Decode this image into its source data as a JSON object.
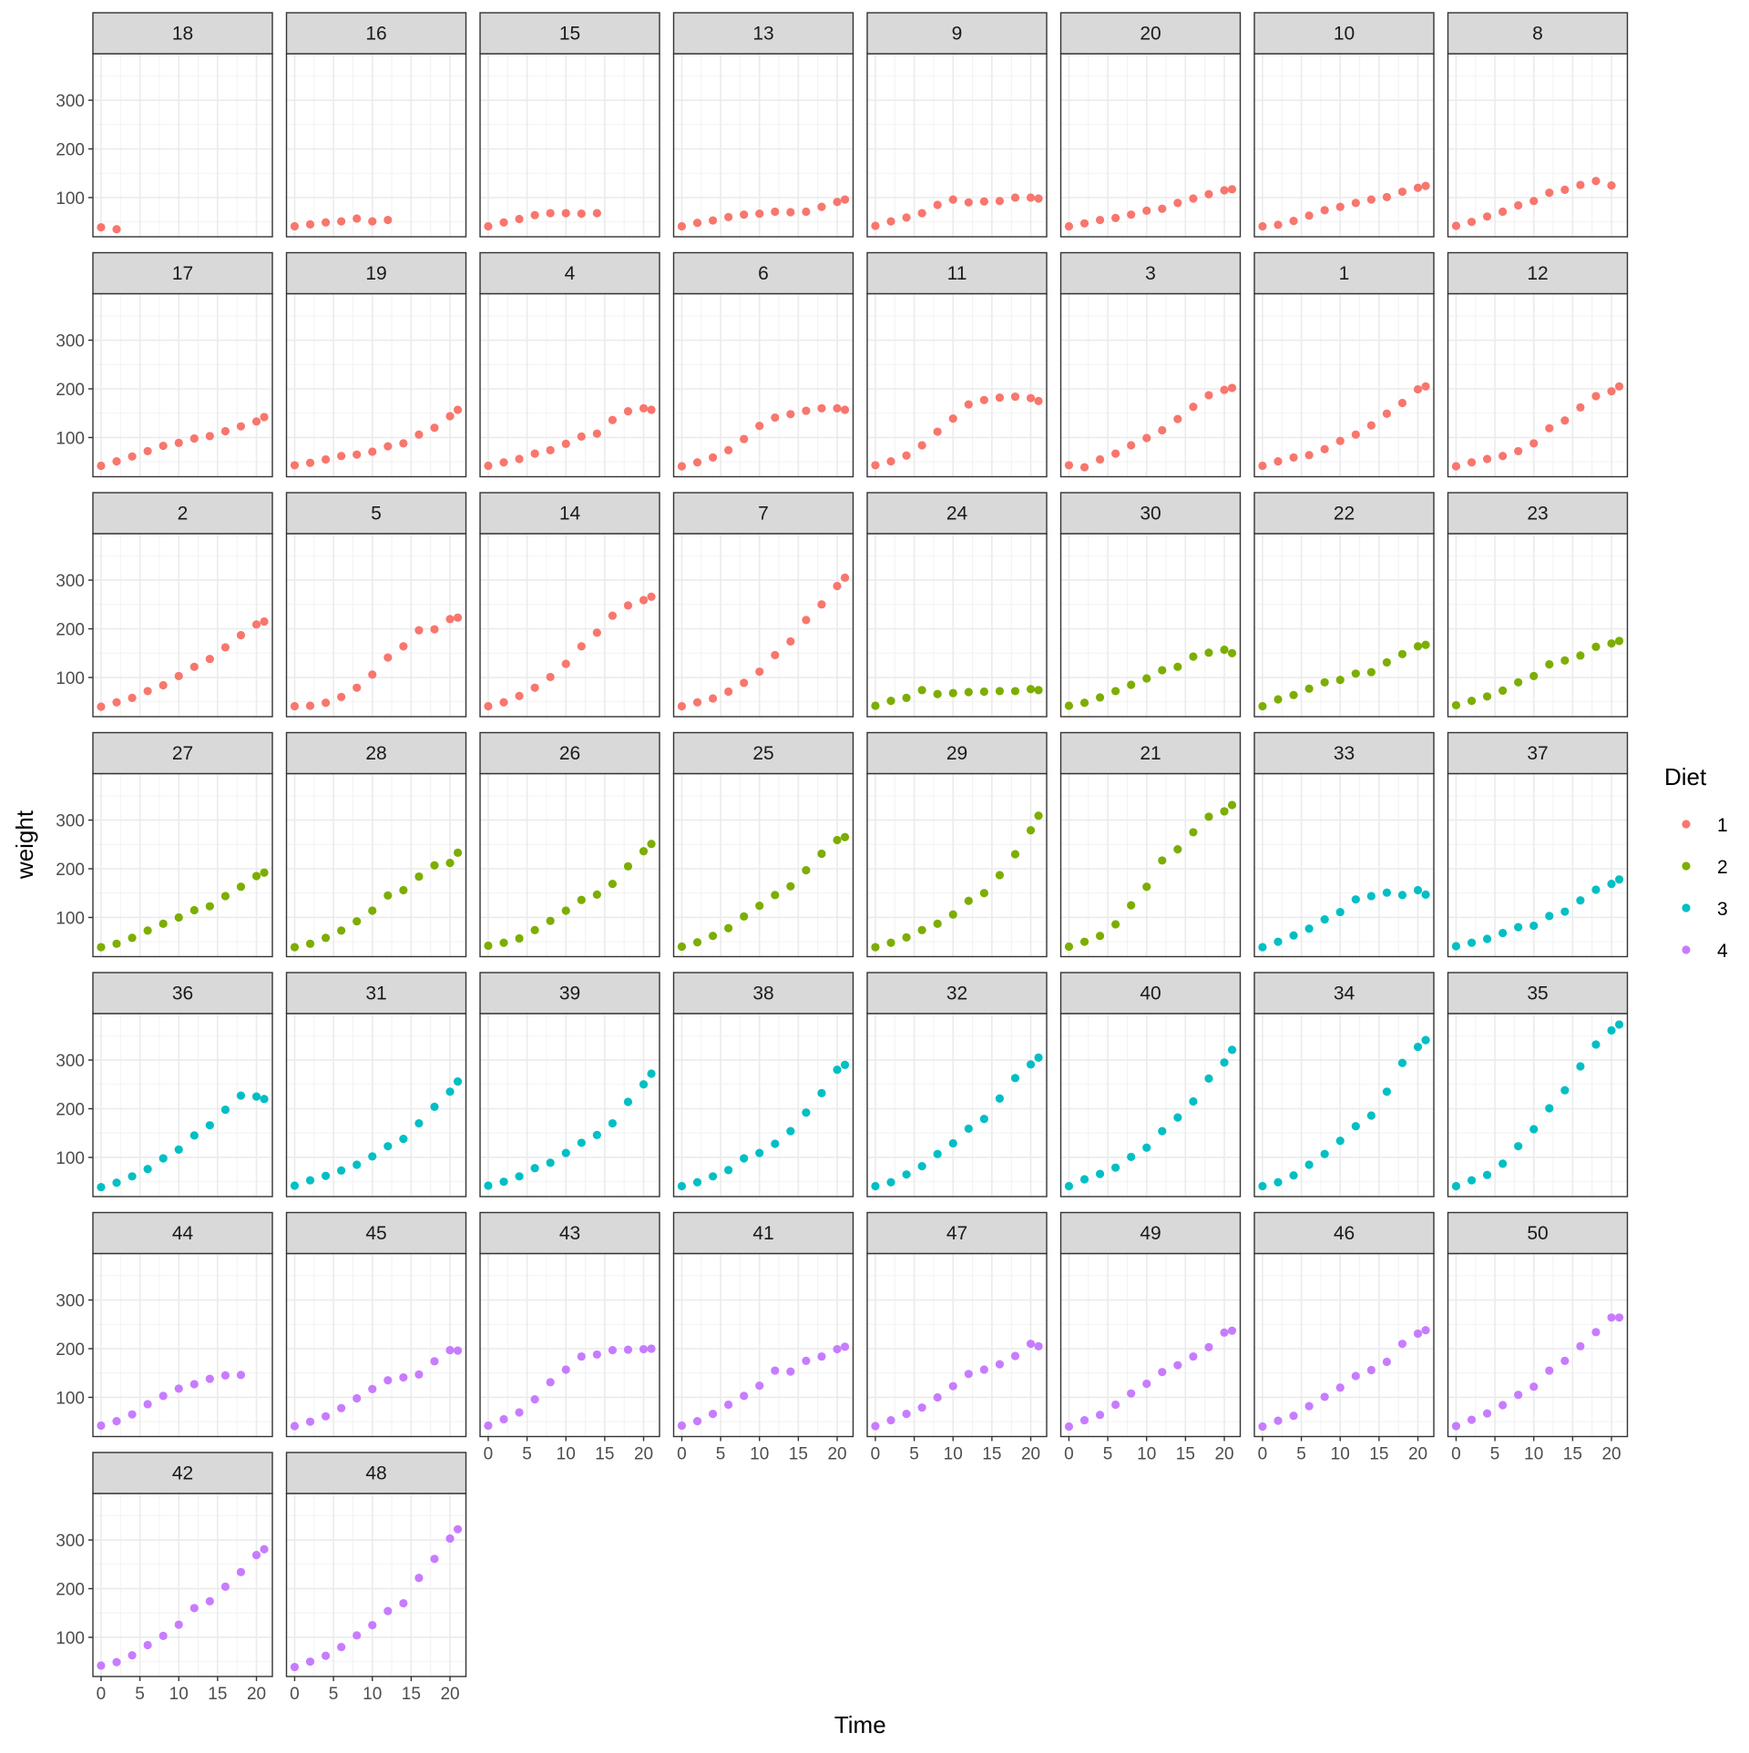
{
  "chart_data": {
    "type": "scatter",
    "facet_by": "Chick",
    "xlabel": "Time",
    "ylabel": "weight",
    "xlim": [
      0,
      21
    ],
    "ylim": [
      35,
      380
    ],
    "x_ticks": [
      0,
      5,
      10,
      15,
      20
    ],
    "y_ticks": [
      100,
      200,
      300
    ],
    "grid": true,
    "legend": {
      "title": "Diet",
      "placement": "right",
      "entries": [
        {
          "label": "1",
          "color": "#F8766D"
        },
        {
          "label": "2",
          "color": "#7CAE00"
        },
        {
          "label": "3",
          "color": "#00BFC4"
        },
        {
          "label": "4",
          "color": "#C77CFF"
        }
      ]
    },
    "times": [
      0,
      2,
      4,
      6,
      8,
      10,
      12,
      14,
      16,
      18,
      20,
      21
    ],
    "panels": [
      {
        "chick": "18",
        "diet": "1",
        "weight": [
          39,
          35
        ]
      },
      {
        "chick": "16",
        "diet": "1",
        "weight": [
          41,
          45,
          49,
          51,
          57,
          51,
          54
        ]
      },
      {
        "chick": "15",
        "diet": "1",
        "weight": [
          41,
          49,
          56,
          64,
          68,
          68,
          67,
          68
        ]
      },
      {
        "chick": "13",
        "diet": "1",
        "weight": [
          41,
          48,
          53,
          60,
          65,
          67,
          71,
          70,
          71,
          81,
          91,
          96
        ]
      },
      {
        "chick": "9",
        "diet": "1",
        "weight": [
          42,
          51,
          59,
          68,
          85,
          96,
          90,
          92,
          93,
          100,
          100,
          98
        ]
      },
      {
        "chick": "20",
        "diet": "1",
        "weight": [
          41,
          47,
          54,
          58,
          65,
          73,
          77,
          89,
          98,
          107,
          115,
          117
        ]
      },
      {
        "chick": "10",
        "diet": "1",
        "weight": [
          41,
          44,
          52,
          63,
          74,
          81,
          89,
          96,
          101,
          112,
          120,
          124
        ]
      },
      {
        "chick": "8",
        "diet": "1",
        "weight": [
          42,
          50,
          61,
          71,
          84,
          93,
          110,
          116,
          126,
          134,
          125
        ]
      },
      {
        "chick": "17",
        "diet": "1",
        "weight": [
          42,
          51,
          61,
          72,
          83,
          89,
          98,
          103,
          113,
          123,
          133,
          142
        ]
      },
      {
        "chick": "19",
        "diet": "1",
        "weight": [
          43,
          48,
          55,
          62,
          65,
          71,
          82,
          88,
          106,
          120,
          144,
          157
        ]
      },
      {
        "chick": "4",
        "diet": "1",
        "weight": [
          42,
          49,
          56,
          67,
          74,
          87,
          102,
          108,
          136,
          154,
          160,
          157
        ]
      },
      {
        "chick": "6",
        "diet": "1",
        "weight": [
          41,
          49,
          59,
          74,
          97,
          124,
          141,
          148,
          155,
          160,
          160,
          157
        ]
      },
      {
        "chick": "11",
        "diet": "1",
        "weight": [
          43,
          51,
          63,
          84,
          112,
          139,
          168,
          177,
          182,
          184,
          181,
          175
        ]
      },
      {
        "chick": "3",
        "diet": "1",
        "weight": [
          43,
          39,
          55,
          67,
          84,
          99,
          115,
          138,
          163,
          187,
          198,
          202
        ]
      },
      {
        "chick": "1",
        "diet": "1",
        "weight": [
          42,
          51,
          59,
          64,
          76,
          93,
          106,
          125,
          149,
          171,
          199,
          205
        ]
      },
      {
        "chick": "12",
        "diet": "1",
        "weight": [
          41,
          49,
          56,
          62,
          72,
          88,
          119,
          135,
          162,
          185,
          195,
          205
        ]
      },
      {
        "chick": "2",
        "diet": "1",
        "weight": [
          40,
          49,
          58,
          72,
          84,
          103,
          122,
          138,
          162,
          187,
          209,
          215
        ]
      },
      {
        "chick": "5",
        "diet": "1",
        "weight": [
          41,
          42,
          48,
          60,
          79,
          106,
          141,
          164,
          197,
          199,
          220,
          223
        ]
      },
      {
        "chick": "14",
        "diet": "1",
        "weight": [
          41,
          49,
          62,
          79,
          101,
          128,
          164,
          192,
          227,
          248,
          259,
          266
        ]
      },
      {
        "chick": "7",
        "diet": "1",
        "weight": [
          41,
          49,
          57,
          71,
          89,
          112,
          146,
          174,
          218,
          250,
          288,
          305
        ]
      },
      {
        "chick": "24",
        "diet": "2",
        "weight": [
          42,
          52,
          58,
          74,
          66,
          68,
          70,
          71,
          72,
          72,
          76,
          74
        ]
      },
      {
        "chick": "30",
        "diet": "2",
        "weight": [
          42,
          48,
          59,
          72,
          85,
          98,
          115,
          122,
          143,
          151,
          157,
          150
        ]
      },
      {
        "chick": "22",
        "diet": "2",
        "weight": [
          41,
          55,
          64,
          77,
          90,
          95,
          108,
          111,
          131,
          148,
          164,
          167
        ]
      },
      {
        "chick": "23",
        "diet": "2",
        "weight": [
          43,
          52,
          61,
          73,
          90,
          103,
          127,
          135,
          145,
          163,
          170,
          175
        ]
      },
      {
        "chick": "27",
        "diet": "2",
        "weight": [
          39,
          46,
          58,
          73,
          87,
          100,
          115,
          123,
          144,
          163,
          185,
          192
        ]
      },
      {
        "chick": "28",
        "diet": "2",
        "weight": [
          39,
          46,
          58,
          73,
          92,
          114,
          145,
          156,
          184,
          207,
          212,
          233
        ]
      },
      {
        "chick": "26",
        "diet": "2",
        "weight": [
          42,
          48,
          57,
          74,
          93,
          114,
          136,
          147,
          169,
          205,
          236,
          251
        ]
      },
      {
        "chick": "25",
        "diet": "2",
        "weight": [
          40,
          49,
          62,
          78,
          102,
          124,
          146,
          164,
          197,
          231,
          259,
          265
        ]
      },
      {
        "chick": "29",
        "diet": "2",
        "weight": [
          39,
          48,
          59,
          74,
          87,
          106,
          134,
          150,
          187,
          230,
          279,
          309
        ]
      },
      {
        "chick": "21",
        "diet": "2",
        "weight": [
          40,
          50,
          62,
          86,
          125,
          163,
          217,
          240,
          275,
          307,
          318,
          331
        ]
      },
      {
        "chick": "33",
        "diet": "3",
        "weight": [
          39,
          50,
          63,
          77,
          96,
          111,
          137,
          144,
          151,
          146,
          156,
          147
        ]
      },
      {
        "chick": "37",
        "diet": "3",
        "weight": [
          41,
          48,
          56,
          68,
          80,
          83,
          103,
          112,
          135,
          157,
          169,
          178
        ]
      },
      {
        "chick": "36",
        "diet": "3",
        "weight": [
          39,
          48,
          61,
          76,
          98,
          116,
          145,
          166,
          198,
          227,
          225,
          220
        ]
      },
      {
        "chick": "31",
        "diet": "3",
        "weight": [
          42,
          53,
          62,
          73,
          85,
          102,
          123,
          138,
          170,
          204,
          235,
          256
        ]
      },
      {
        "chick": "39",
        "diet": "3",
        "weight": [
          42,
          50,
          61,
          78,
          89,
          109,
          130,
          146,
          170,
          214,
          250,
          272
        ]
      },
      {
        "chick": "38",
        "diet": "3",
        "weight": [
          41,
          49,
          61,
          74,
          98,
          109,
          128,
          154,
          192,
          232,
          280,
          290
        ]
      },
      {
        "chick": "32",
        "diet": "3",
        "weight": [
          41,
          49,
          65,
          82,
          107,
          129,
          159,
          179,
          221,
          263,
          291,
          305
        ]
      },
      {
        "chick": "40",
        "diet": "3",
        "weight": [
          41,
          55,
          66,
          79,
          101,
          120,
          154,
          182,
          215,
          262,
          295,
          321
        ]
      },
      {
        "chick": "34",
        "diet": "3",
        "weight": [
          41,
          49,
          63,
          85,
          107,
          134,
          164,
          186,
          235,
          294,
          327,
          341
        ]
      },
      {
        "chick": "35",
        "diet": "3",
        "weight": [
          41,
          53,
          64,
          87,
          123,
          158,
          201,
          238,
          287,
          332,
          361,
          373
        ]
      },
      {
        "chick": "44",
        "diet": "4",
        "weight": [
          42,
          51,
          65,
          86,
          103,
          118,
          127,
          138,
          145,
          146
        ]
      },
      {
        "chick": "45",
        "diet": "4",
        "weight": [
          41,
          50,
          61,
          78,
          98,
          117,
          135,
          141,
          147,
          174,
          197,
          196
        ]
      },
      {
        "chick": "43",
        "diet": "4",
        "weight": [
          42,
          55,
          69,
          96,
          131,
          157,
          184,
          188,
          197,
          198,
          199,
          200
        ]
      },
      {
        "chick": "41",
        "diet": "4",
        "weight": [
          42,
          51,
          66,
          85,
          103,
          124,
          155,
          153,
          175,
          184,
          199,
          204
        ]
      },
      {
        "chick": "47",
        "diet": "4",
        "weight": [
          41,
          53,
          66,
          79,
          100,
          123,
          148,
          157,
          168,
          185,
          210,
          205
        ]
      },
      {
        "chick": "49",
        "diet": "4",
        "weight": [
          40,
          53,
          64,
          85,
          108,
          128,
          152,
          166,
          184,
          203,
          233,
          237
        ]
      },
      {
        "chick": "46",
        "diet": "4",
        "weight": [
          40,
          52,
          62,
          82,
          101,
          120,
          144,
          156,
          173,
          210,
          231,
          238
        ]
      },
      {
        "chick": "50",
        "diet": "4",
        "weight": [
          41,
          54,
          67,
          84,
          105,
          122,
          155,
          175,
          205,
          234,
          264,
          264
        ]
      },
      {
        "chick": "42",
        "diet": "4",
        "weight": [
          42,
          49,
          63,
          84,
          103,
          126,
          160,
          174,
          204,
          234,
          269,
          281
        ]
      },
      {
        "chick": "48",
        "diet": "4",
        "weight": [
          39,
          50,
          62,
          80,
          104,
          125,
          154,
          170,
          222,
          261,
          303,
          322
        ]
      }
    ]
  }
}
